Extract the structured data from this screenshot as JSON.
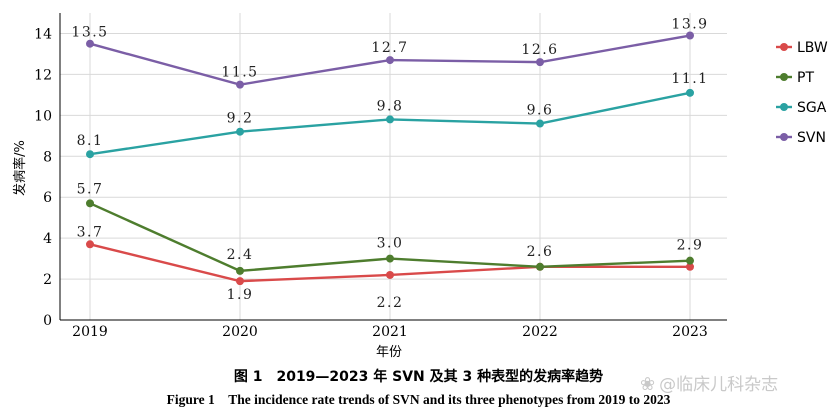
{
  "chart_data": {
    "type": "line",
    "categories": [
      "2019",
      "2020",
      "2021",
      "2022",
      "2023"
    ],
    "series": [
      {
        "name": "LBW",
        "color": "#d94a4a",
        "values": [
          3.7,
          1.9,
          2.2,
          2.6,
          2.6
        ],
        "labels": [
          "3.7",
          "1.9",
          "2.2",
          "",
          ""
        ]
      },
      {
        "name": "PT",
        "color": "#4e7d2e",
        "values": [
          5.7,
          2.4,
          3.0,
          2.6,
          2.9
        ],
        "labels": [
          "5.7",
          "2.4",
          "3.0",
          "2.6",
          "2.9"
        ]
      },
      {
        "name": "SGA",
        "color": "#2aa2a2",
        "values": [
          8.1,
          9.2,
          9.8,
          9.6,
          11.1
        ],
        "labels": [
          "8.1",
          "9.2",
          "9.8",
          "9.6",
          "11.1"
        ]
      },
      {
        "name": "SVN",
        "color": "#7b5ea6",
        "values": [
          13.5,
          11.5,
          12.7,
          12.6,
          13.9
        ],
        "labels": [
          "13.5",
          "11.5",
          "12.7",
          "12.6",
          "13.9"
        ]
      }
    ],
    "xlabel": "年份",
    "ylabel": "发病率/%",
    "ylim": [
      0,
      15
    ],
    "yticks": [
      "0",
      "2",
      "4",
      "6",
      "8",
      "10",
      "12",
      "14"
    ],
    "grid": true,
    "legend_position": "right"
  },
  "caption": {
    "chinese": "图 1　2019—2023 年 SVN 及其 3 种表型的发病率趋势",
    "english": "Figure 1　The incidence rate trends of SVN and its three phenotypes from 2019 to 2023"
  },
  "watermark": {
    "text": "@临床儿科杂志",
    "icon": "weibo-icon"
  }
}
